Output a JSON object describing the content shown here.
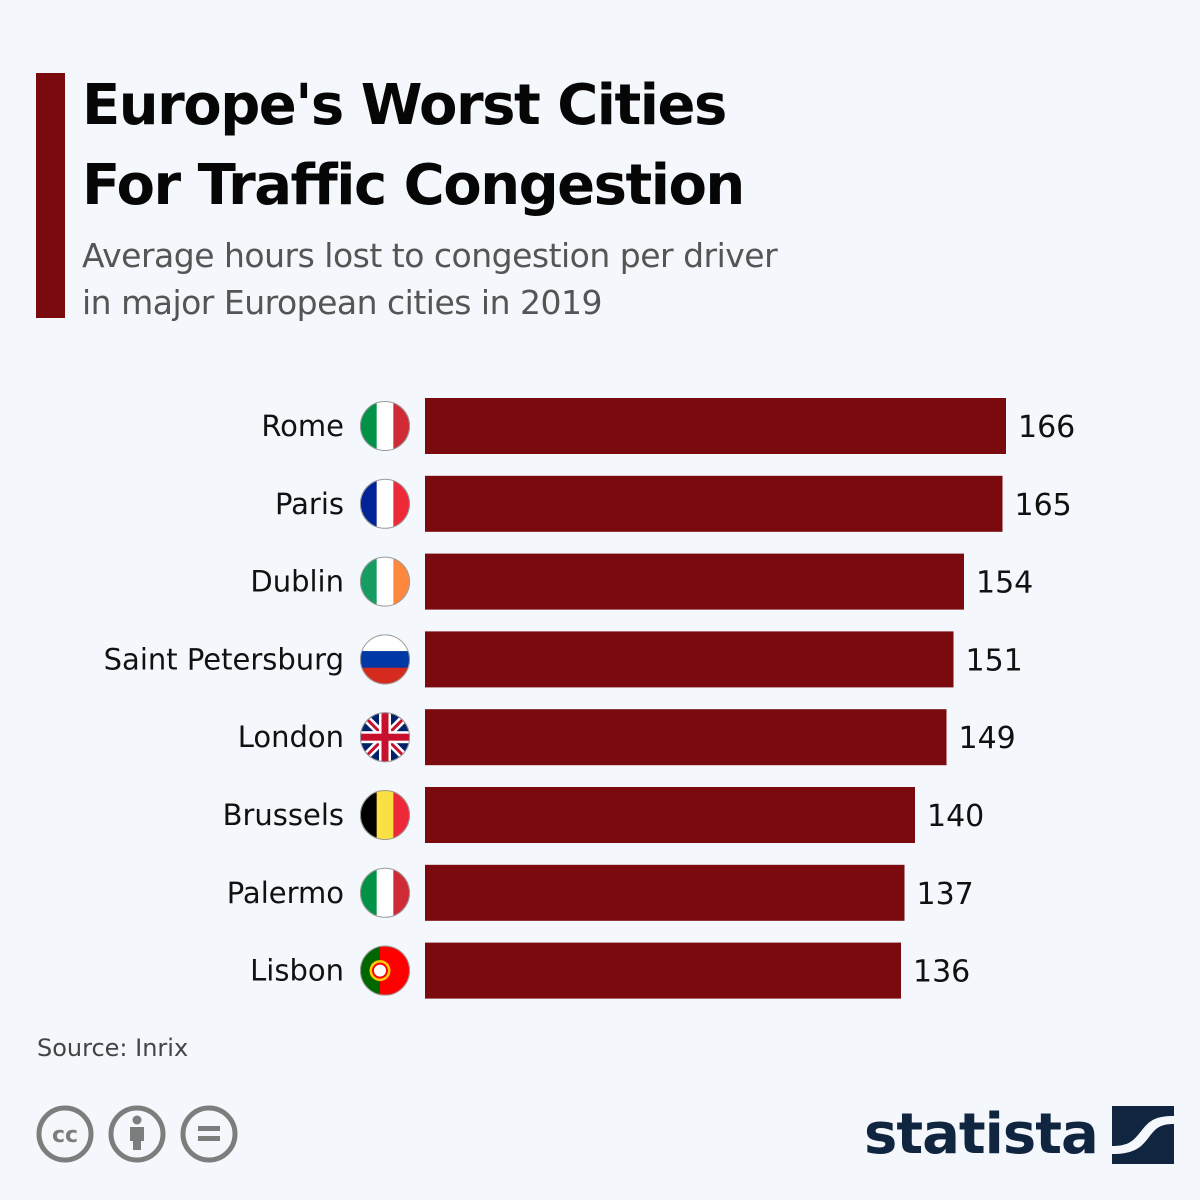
{
  "header": {
    "title_line1": "Europe's Worst Cities",
    "title_line2": "For Traffic Congestion",
    "subtitle_line1": "Average hours lost to congestion per driver",
    "subtitle_line2": "in major European cities in 2019"
  },
  "colors": {
    "accent": "#7b0a0e",
    "bar": "#7b0a0e",
    "background": "#f4f7fb",
    "logo": "#0f2540",
    "license_icons": "#7a7f7d"
  },
  "chart_data": {
    "type": "bar",
    "orientation": "horizontal",
    "title": "Europe's Worst Cities For Traffic Congestion",
    "subtitle": "Average hours lost to congestion per driver in major European cities in 2019",
    "xlabel": "",
    "ylabel": "",
    "xlim": [
      0,
      166
    ],
    "grid": false,
    "categories": [
      "Rome",
      "Paris",
      "Dublin",
      "Saint Petersburg",
      "London",
      "Brussels",
      "Palermo",
      "Lisbon"
    ],
    "flags": [
      "italy-flag",
      "france-flag",
      "ireland-flag",
      "russia-flag",
      "uk-flag",
      "belgium-flag",
      "italy-flag",
      "portugal-flag"
    ],
    "values": [
      166,
      165,
      154,
      151,
      149,
      140,
      137,
      136
    ],
    "value_labels": [
      "166",
      "165",
      "154",
      "151",
      "149",
      "140",
      "137",
      "136"
    ],
    "unit": "hours"
  },
  "footer": {
    "source": "Source: Inrix",
    "license_icons": [
      "creative-commons-icon",
      "attribution-icon",
      "no-derivatives-icon"
    ],
    "logo_text": "statista"
  }
}
